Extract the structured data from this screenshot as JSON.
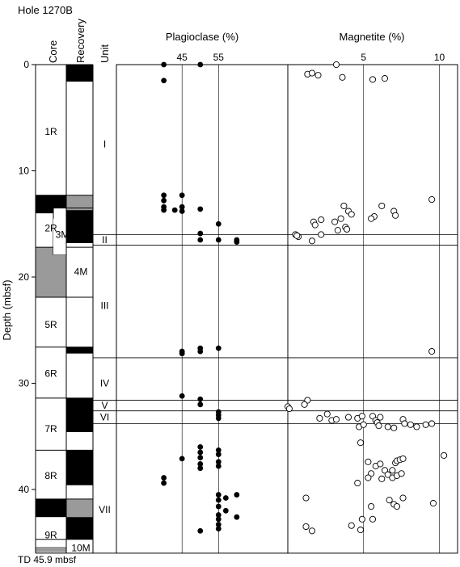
{
  "chart_data": {
    "title": "Hole 1270B",
    "footer": "TD 45.9 mbsf",
    "y_axis": {
      "label": "Depth (mbsf)",
      "range": [
        0,
        46
      ],
      "ticks": [
        0,
        10,
        20,
        30,
        40
      ],
      "tick_labels": [
        "0",
        "10",
        "20",
        "30",
        "40"
      ]
    },
    "columns": {
      "core": "Core",
      "recovery": "Recovery",
      "unit": "Unit"
    },
    "cores": [
      {
        "label": "1R",
        "top": 0,
        "bottom": 12.3,
        "label_depth": 6.3
      },
      {
        "label": "2R",
        "top": 12.3,
        "bottom": 17.2,
        "label_depth": 15.4
      },
      {
        "label": "4M",
        "top": 17.2,
        "bottom": 21.9,
        "label_depth": 19.5
      },
      {
        "label": "5R",
        "top": 21.9,
        "bottom": 26.6,
        "label_depth": 24.5
      },
      {
        "label": "6R",
        "top": 26.6,
        "bottom": 31.4,
        "label_depth": 29.1
      },
      {
        "label": "7R",
        "top": 31.4,
        "bottom": 36.3,
        "label_depth": 34.3
      },
      {
        "label": "8R",
        "top": 36.3,
        "bottom": 40.9,
        "label_depth": 38.7
      },
      {
        "label": "9R",
        "top": 40.9,
        "bottom": 45.9,
        "label_depth": 44.3
      },
      {
        "label": "3M",
        "top": 13.5,
        "bottom": 17.9,
        "label_depth": 16.0
      },
      {
        "label": "10M",
        "top": 44.7,
        "bottom": 45.9,
        "label_depth": 45.5
      }
    ],
    "core_fills": [
      {
        "col": "core",
        "top": 12.3,
        "bottom": 14.0,
        "fill": "black"
      },
      {
        "col": "core",
        "top": 17.2,
        "bottom": 21.9,
        "fill": "gray"
      },
      {
        "col": "core",
        "top": 40.9,
        "bottom": 42.6,
        "fill": "black"
      },
      {
        "col": "core",
        "top": 45.4,
        "bottom": 45.9,
        "fill": "gray"
      },
      {
        "col": "recovery",
        "top": 0,
        "bottom": 1.6,
        "fill": "black"
      },
      {
        "col": "recovery",
        "top": 12.3,
        "bottom": 13.7,
        "fill": "gray"
      },
      {
        "col": "recovery",
        "top": 13.7,
        "bottom": 16.8,
        "fill": "black"
      },
      {
        "col": "recovery",
        "top": 26.6,
        "bottom": 27.2,
        "fill": "black"
      },
      {
        "col": "recovery",
        "top": 31.4,
        "bottom": 34.6,
        "fill": "black"
      },
      {
        "col": "recovery",
        "top": 36.3,
        "bottom": 39.6,
        "fill": "black"
      },
      {
        "col": "recovery",
        "top": 40.9,
        "bottom": 42.6,
        "fill": "gray"
      },
      {
        "col": "recovery",
        "top": 42.6,
        "bottom": 44.7,
        "fill": "black"
      }
    ],
    "units": [
      {
        "label": "I",
        "top": 0,
        "bottom": 16.0,
        "label_depth": 7.5
      },
      {
        "label": "II",
        "top": 16.0,
        "bottom": 17.0,
        "label_depth": 16.5
      },
      {
        "label": "III",
        "top": 17.0,
        "bottom": 27.6,
        "label_depth": 22.7
      },
      {
        "label": "IV",
        "top": 27.6,
        "bottom": 31.6,
        "label_depth": 30.0
      },
      {
        "label": "V",
        "top": 31.6,
        "bottom": 32.6,
        "label_depth": 32.1
      },
      {
        "label": "VI",
        "top": 32.6,
        "bottom": 33.8,
        "label_depth": 33.2
      },
      {
        "label": "VII",
        "top": 33.8,
        "bottom": 45.9,
        "label_depth": 41.9
      }
    ],
    "plagioclase": {
      "title": "Plagioclase (%)",
      "type": "scatter",
      "xlim": [
        27.0,
        74.0
      ],
      "gridlines": [
        45,
        55
      ],
      "tick_labels": [
        "45",
        "55"
      ],
      "points": [
        [
          40.0,
          0.0
        ],
        [
          50.0,
          0.0
        ],
        [
          40.0,
          1.5
        ],
        [
          40.0,
          12.3
        ],
        [
          45.0,
          12.3
        ],
        [
          40.0,
          12.8
        ],
        [
          40.0,
          13.4
        ],
        [
          45.0,
          13.4
        ],
        [
          40.0,
          13.7
        ],
        [
          43.0,
          13.7
        ],
        [
          45.0,
          13.8
        ],
        [
          50.0,
          13.6
        ],
        [
          55.0,
          15.0
        ],
        [
          50.0,
          15.9
        ],
        [
          50.0,
          16.5
        ],
        [
          55.0,
          16.5
        ],
        [
          60.0,
          16.5
        ],
        [
          60.0,
          16.7
        ],
        [
          50.0,
          26.7
        ],
        [
          50.0,
          27.0
        ],
        [
          45.0,
          27.0
        ],
        [
          45.0,
          27.2
        ],
        [
          55.0,
          26.7
        ],
        [
          45.0,
          31.2
        ],
        [
          50.0,
          31.5
        ],
        [
          50.0,
          32.0
        ],
        [
          55.0,
          32.7
        ],
        [
          55.0,
          33.0
        ],
        [
          55.0,
          33.3
        ],
        [
          50.0,
          36.0
        ],
        [
          50.0,
          36.5
        ],
        [
          50.0,
          37.0
        ],
        [
          50.0,
          37.6
        ],
        [
          50.0,
          38.0
        ],
        [
          55.0,
          36.3
        ],
        [
          55.0,
          36.7
        ],
        [
          55.0,
          37.4
        ],
        [
          55.0,
          37.8
        ],
        [
          45.0,
          37.1
        ],
        [
          40.0,
          38.9
        ],
        [
          40.0,
          39.4
        ],
        [
          55.0,
          40.5
        ],
        [
          55.0,
          41.0
        ],
        [
          55.0,
          41.6
        ],
        [
          60.0,
          40.5
        ],
        [
          57.0,
          40.8
        ],
        [
          55.0,
          42.4
        ],
        [
          55.0,
          42.8
        ],
        [
          55.0,
          43.3
        ],
        [
          55.0,
          43.7
        ],
        [
          57.0,
          42.0
        ],
        [
          60.0,
          42.6
        ],
        [
          50.0,
          43.9
        ]
      ]
    },
    "magnetite": {
      "title": "Magnetite (%)",
      "type": "scatter",
      "xlim": [
        0.0,
        11.2
      ],
      "gridlines": [
        5,
        10
      ],
      "tick_labels": [
        "5",
        "10"
      ],
      "points": [
        [
          3.2,
          0.0
        ],
        [
          1.3,
          0.9
        ],
        [
          1.6,
          0.8
        ],
        [
          2.0,
          1.0
        ],
        [
          3.6,
          1.2
        ],
        [
          5.6,
          1.4
        ],
        [
          6.4,
          1.3
        ],
        [
          9.5,
          12.7
        ],
        [
          6.2,
          13.3
        ],
        [
          5.7,
          14.3
        ],
        [
          7.0,
          13.8
        ],
        [
          7.1,
          14.2
        ],
        [
          3.7,
          13.3
        ],
        [
          4.0,
          13.8
        ],
        [
          4.2,
          14.1
        ],
        [
          3.5,
          14.5
        ],
        [
          3.1,
          14.8
        ],
        [
          5.5,
          14.5
        ],
        [
          2.2,
          14.6
        ],
        [
          1.7,
          14.8
        ],
        [
          1.8,
          15.1
        ],
        [
          3.8,
          15.3
        ],
        [
          3.9,
          15.5
        ],
        [
          0.5,
          16.0
        ],
        [
          0.7,
          16.2
        ],
        [
          0.6,
          16.1
        ],
        [
          1.6,
          16.6
        ],
        [
          2.2,
          16.0
        ],
        [
          3.3,
          15.6
        ],
        [
          9.5,
          27.0
        ],
        [
          1.3,
          31.6
        ],
        [
          1.1,
          32.0
        ],
        [
          0.0,
          32.2
        ],
        [
          0.1,
          32.4
        ],
        [
          2.6,
          32.9
        ],
        [
          2.1,
          33.3
        ],
        [
          2.9,
          33.5
        ],
        [
          3.2,
          33.4
        ],
        [
          4.0,
          33.2
        ],
        [
          4.6,
          33.3
        ],
        [
          4.9,
          33.1
        ],
        [
          5.6,
          33.1
        ],
        [
          5.8,
          33.5
        ],
        [
          5.9,
          33.7
        ],
        [
          6.1,
          33.2
        ],
        [
          4.7,
          34.1
        ],
        [
          5.0,
          33.9
        ],
        [
          6.0,
          34.0
        ],
        [
          6.6,
          34.1
        ],
        [
          7.0,
          34.2
        ],
        [
          7.6,
          33.4
        ],
        [
          7.7,
          33.8
        ],
        [
          8.1,
          33.9
        ],
        [
          8.5,
          34.1
        ],
        [
          9.1,
          33.9
        ],
        [
          9.5,
          33.8
        ],
        [
          10.3,
          36.8
        ],
        [
          4.8,
          35.6
        ],
        [
          5.3,
          37.4
        ],
        [
          5.8,
          37.8
        ],
        [
          6.1,
          37.6
        ],
        [
          6.4,
          38.2
        ],
        [
          6.6,
          38.6
        ],
        [
          6.9,
          38.2
        ],
        [
          7.1,
          37.5
        ],
        [
          7.2,
          37.3
        ],
        [
          7.4,
          37.2
        ],
        [
          7.6,
          37.1
        ],
        [
          5.5,
          38.5
        ],
        [
          5.3,
          38.9
        ],
        [
          6.2,
          39.0
        ],
        [
          6.9,
          38.9
        ],
        [
          7.2,
          38.7
        ],
        [
          7.5,
          38.5
        ],
        [
          4.6,
          39.4
        ],
        [
          1.2,
          40.8
        ],
        [
          5.5,
          41.6
        ],
        [
          6.7,
          41.0
        ],
        [
          7.0,
          41.4
        ],
        [
          7.2,
          41.6
        ],
        [
          7.6,
          40.8
        ],
        [
          9.6,
          41.3
        ],
        [
          4.9,
          42.8
        ],
        [
          5.6,
          42.8
        ],
        [
          1.2,
          43.5
        ],
        [
          1.6,
          43.9
        ],
        [
          4.2,
          43.4
        ],
        [
          4.8,
          43.8
        ]
      ]
    }
  }
}
